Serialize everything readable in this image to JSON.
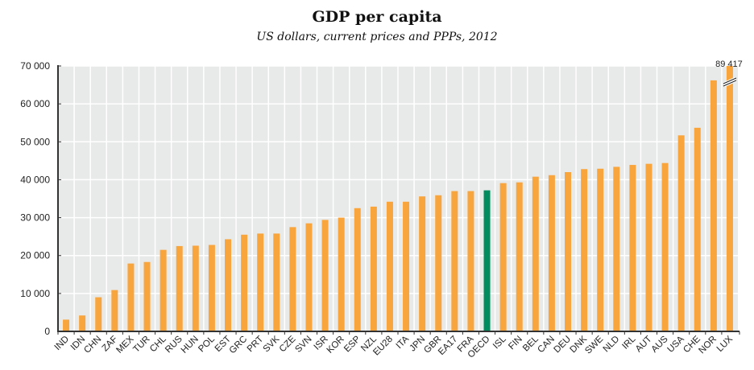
{
  "chart_data": {
    "type": "bar",
    "title": "GDP per capita",
    "subtitle": "US dollars, current prices and PPPs, 2012",
    "xlabel": "",
    "ylabel": "",
    "ylim": [
      0,
      70000
    ],
    "yticks": [
      0,
      10000,
      20000,
      30000,
      40000,
      50000,
      60000,
      70000
    ],
    "ytick_labels": [
      "0",
      "10 000",
      "20 000",
      "30 000",
      "40 000",
      "50 000",
      "60 000",
      "70 000"
    ],
    "grid": true,
    "categories": [
      "IND",
      "IDN",
      "CHN",
      "ZAF",
      "MEX",
      "TUR",
      "CHL",
      "RUS",
      "HUN",
      "POL",
      "EST",
      "GRC",
      "PRT",
      "SVK",
      "CZE",
      "SVN",
      "ISR",
      "KOR",
      "ESP",
      "NZL",
      "EU28",
      "ITA",
      "JPN",
      "GBR",
      "EA17",
      "FRA",
      "OECD",
      "ISL",
      "FIN",
      "BEL",
      "CAN",
      "DEU",
      "DNK",
      "SWE",
      "NLD",
      "IRL",
      "AUT",
      "AUS",
      "USA",
      "CHE",
      "NOR",
      "LUX"
    ],
    "values": [
      3100,
      4200,
      9000,
      10900,
      17900,
      18300,
      21500,
      22500,
      22600,
      22800,
      24300,
      25500,
      25800,
      25800,
      27500,
      28500,
      29400,
      30000,
      32500,
      32900,
      34200,
      34200,
      35600,
      35900,
      37000,
      37000,
      37200,
      39100,
      39300,
      40800,
      41200,
      42000,
      42800,
      42900,
      43400,
      43900,
      44200,
      44400,
      51700,
      53700,
      66200,
      89417
    ],
    "highlight": "OECD",
    "colors": {
      "default": "#F9A53D",
      "highlight": "#008C5E",
      "plot_bg": "#E8E9E9",
      "grid": "#FFFFFF",
      "axis": "#333333"
    },
    "annotations": [
      {
        "category": "LUX",
        "text": "89 417",
        "note": "axis break"
      }
    ]
  }
}
